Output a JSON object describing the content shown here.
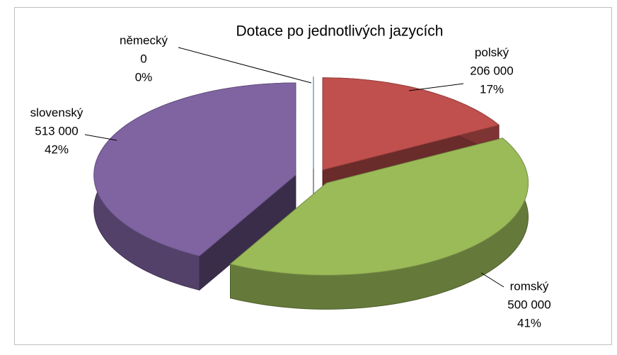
{
  "chart_data": {
    "type": "pie",
    "title": "Dotace po jednotlivých jazycích",
    "categories": [
      "polský",
      "romský",
      "slovenský",
      "německý"
    ],
    "values": [
      206000,
      500000,
      513000,
      0
    ],
    "value_labels": [
      "206 000",
      "500 000",
      "513 000",
      "0"
    ],
    "percent_labels": [
      "17%",
      "41%",
      "42%",
      "0%"
    ],
    "colors": [
      "#c0504d",
      "#9bbb59",
      "#8064a2",
      "#4f81bd"
    ]
  }
}
